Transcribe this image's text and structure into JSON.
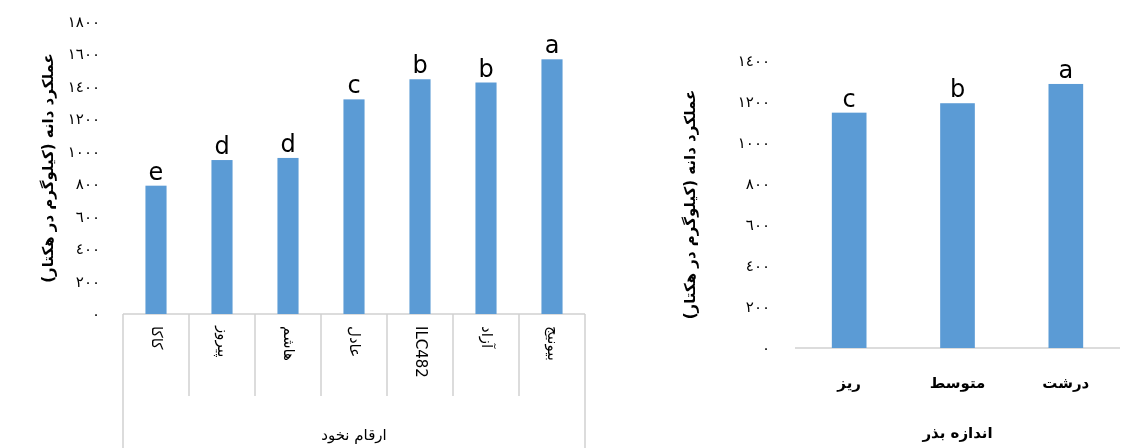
{
  "chart_data": [
    {
      "type": "bar",
      "categories": [
        "کاکا",
        "پیروز",
        "هاشم",
        "عادل",
        "ILC482",
        "آزاد",
        "بیونیج"
      ],
      "values": [
        791,
        949,
        962,
        1323,
        1447,
        1427,
        1570
      ],
      "color": "#5b9bd5",
      "value_labels": [
        "e",
        "d",
        "d",
        "c",
        "b",
        "b",
        "a"
      ],
      "ylabel": "عملکرد دانه (کیلوگرم در هکتار)",
      "xlabel": "ارقام نخود",
      "ylim": [
        0,
        1800
      ],
      "yticks": [
        {
          "value": 0,
          "label": "٠"
        },
        {
          "value": 200,
          "label": "٢٠٠"
        },
        {
          "value": 400,
          "label": "٤٠٠"
        },
        {
          "value": 600,
          "label": "٦٠٠"
        },
        {
          "value": 800,
          "label": "٨٠٠"
        },
        {
          "value": 1000,
          "label": "١٠٠٠"
        },
        {
          "value": 1200,
          "label": "١٢٠٠"
        },
        {
          "value": 1400,
          "label": "١٤٠٠"
        },
        {
          "value": 1600,
          "label": "١٦٠٠"
        },
        {
          "value": 1800,
          "label": "١٨٠٠"
        }
      ]
    },
    {
      "type": "bar",
      "categories": [
        "ریز",
        "متوسط",
        "درشت"
      ],
      "values": [
        1148,
        1194,
        1288
      ],
      "color": "#5b9bd5",
      "value_labels": [
        "c",
        "b",
        "a"
      ],
      "ylabel": "عملکرد دانه (کیلوگرم در هکتار)",
      "xlabel": "اندازه بذر",
      "ylim": [
        0,
        1400
      ],
      "yticks": [
        {
          "value": 0,
          "label": "٠"
        },
        {
          "value": 200,
          "label": "٢٠٠"
        },
        {
          "value": 400,
          "label": "٤٠٠"
        },
        {
          "value": 600,
          "label": "٦٠٠"
        },
        {
          "value": 800,
          "label": "٨٠٠"
        },
        {
          "value": 1000,
          "label": "١٠٠٠"
        },
        {
          "value": 1200,
          "label": "١٢٠٠"
        },
        {
          "value": 1400,
          "label": "١٤٠٠"
        }
      ]
    }
  ]
}
